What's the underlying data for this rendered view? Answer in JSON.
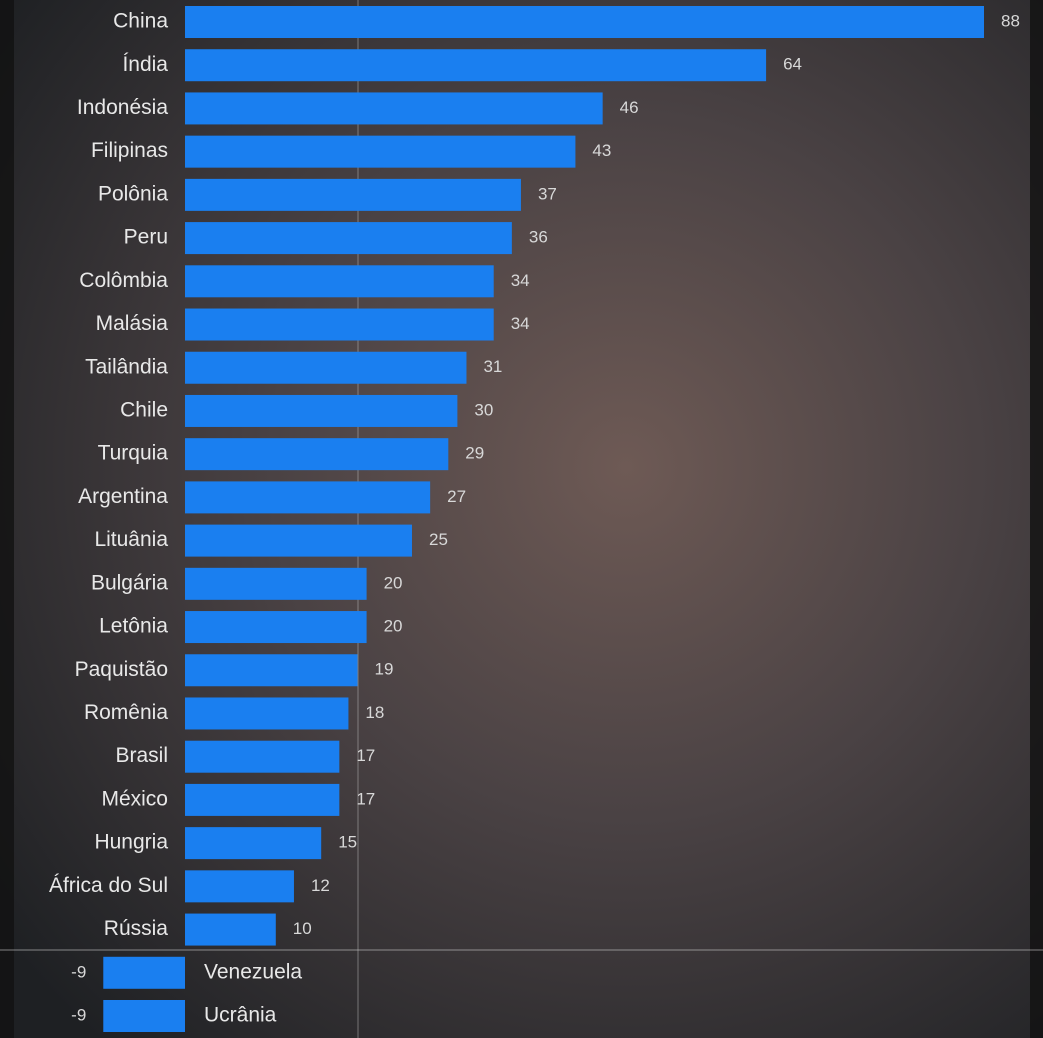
{
  "chart_data": {
    "type": "barh",
    "categories": [
      "China",
      "Índia",
      "Indonésia",
      "Filipinas",
      "Polônia",
      "Peru",
      "Colômbia",
      "Malásia",
      "Tailândia",
      "Chile",
      "Turquia",
      "Argentina",
      "Lituânia",
      "Bulgária",
      "Letônia",
      "Paquistão",
      "Romênia",
      "Brasil",
      "México",
      "Hungria",
      "África do Sul",
      "Rússia",
      "Venezuela",
      "Ucrânia"
    ],
    "values": [
      88,
      64,
      46,
      43,
      37,
      36,
      34,
      34,
      31,
      30,
      29,
      27,
      25,
      20,
      20,
      19,
      18,
      17,
      17,
      15,
      12,
      10,
      -9,
      -9
    ],
    "color": "#1a7ff0"
  }
}
